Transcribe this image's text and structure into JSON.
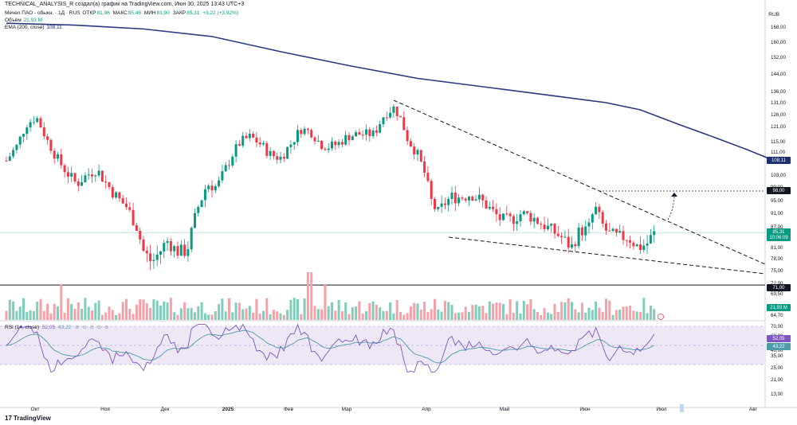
{
  "header": {
    "caption": "TECHNICAL_ANALYSIS_R создал(а) график на TradingView.com, Июн 30, 2025 13:43 UTC+3"
  },
  "legend": {
    "symbol": "Мечел ПАО - обыкн. · 1Д · RUS",
    "open_label": "ОТКР",
    "open_value": "81,96",
    "high_label": "МАКС",
    "high_value": "85,48",
    "low_label": "МИН",
    "low_value": "81,90",
    "close_label": "ЗАКР",
    "close_value": "85,31",
    "change_value": "+3,22 (+3,92%)",
    "volume_label": "Объём",
    "volume_value": "21,93 M",
    "ema_label": "EMA (200, close)",
    "ema_value": "108,11"
  },
  "rsi_legend": {
    "label": "RSI (14, close)",
    "rsi_value": "52,05",
    "ma_value": "43,22",
    "dots": "⊘ ⊙ ⊙ ⊙ ⊙"
  },
  "currency": "RUB",
  "footer": {
    "brand": "TradingView",
    "logo_icon": "tradingview-logo-icon"
  },
  "colors": {
    "up": "#089981",
    "down": "#f23645",
    "ema": "#2a3a7c",
    "rsi": "#7e57c2",
    "rsi_ma": "#4b9ca8",
    "rsi_band": "#ede7f6",
    "badge_dark": "#131722",
    "badge_ema": "#1e2f6e",
    "badge_price": "#089981"
  },
  "chart_data": {
    "type": "candlestick",
    "price_axis_ticks": [
      "168,00",
      "160,00",
      "152,00",
      "144,00",
      "136,00",
      "131,00",
      "126,00",
      "121,00",
      "115,00",
      "111,00",
      "103,00",
      "99,00",
      "95,00",
      "91,00",
      "87,00",
      "81,00",
      "78,00",
      "75,00",
      "72,00",
      "69,50",
      "64,70"
    ],
    "rsi_axis_ticks": [
      "70,00",
      "60,00",
      "50,00",
      "40,00",
      "35,00",
      "25,00",
      "21,00",
      "13,00"
    ],
    "time_axis_labels": [
      "Окт",
      "Ноя",
      "Дек",
      "2025",
      "Фев",
      "Мар",
      "Апр",
      "Май",
      "Июн",
      "Июл",
      "Авг"
    ],
    "price_badges": {
      "ema": "108,11",
      "target": "98,00",
      "close": "85,31",
      "countdown": "10:06:09",
      "level": "71,00",
      "volume": "21,93 M",
      "rsi": "52,05",
      "rsi_ma": "43,22"
    },
    "candle_count": 190,
    "ema_points": [
      [
        0,
        170
      ],
      [
        20,
        169
      ],
      [
        40,
        167
      ],
      [
        60,
        163
      ],
      [
        80,
        155
      ],
      [
        100,
        148
      ],
      [
        120,
        142
      ],
      [
        140,
        138
      ],
      [
        160,
        134
      ],
      [
        175,
        131
      ],
      [
        185,
        128
      ],
      [
        196,
        122
      ],
      [
        206,
        117
      ],
      [
        216,
        112
      ],
      [
        222,
        109
      ]
    ]
  }
}
